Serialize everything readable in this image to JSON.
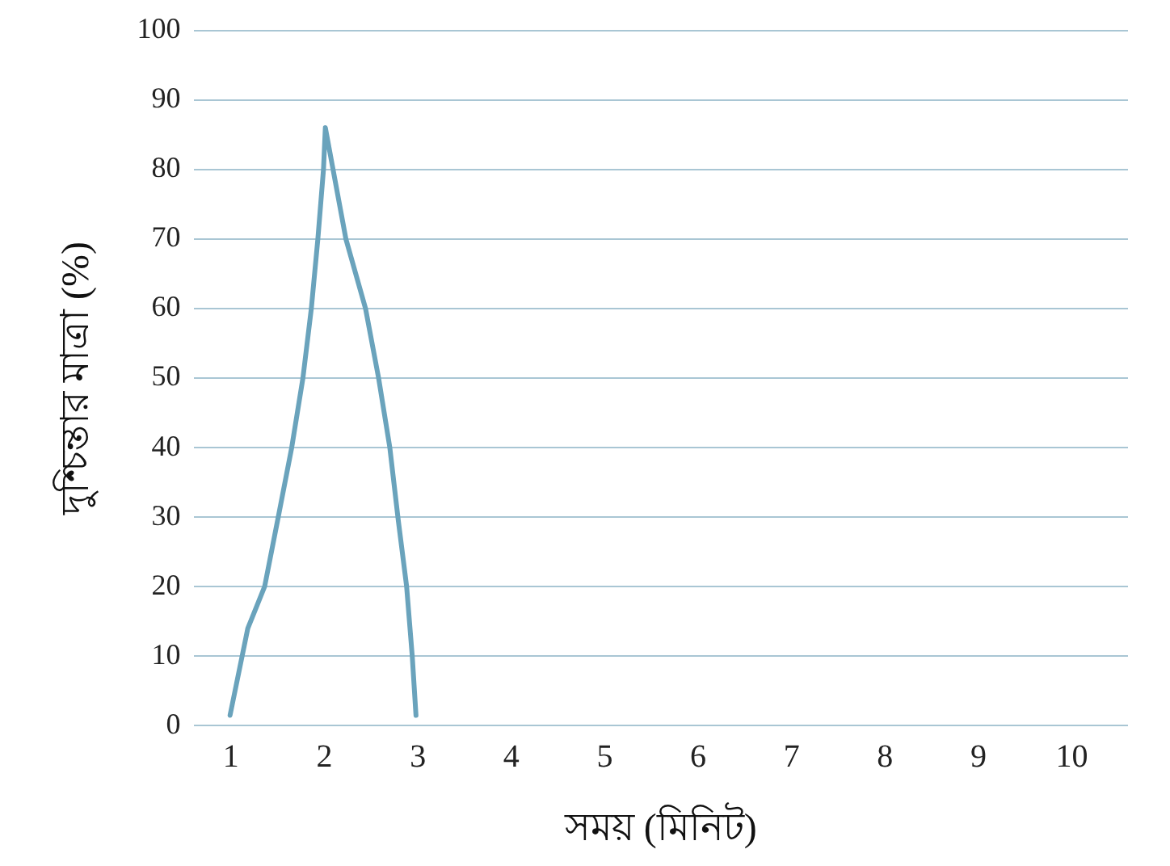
{
  "chart_data": {
    "type": "line",
    "xlabel": "সময় (মিনিট)",
    "ylabel": "দুশ্চিন্তার মাত্রা (%)",
    "x": [
      0.99,
      1.18,
      1.36,
      1.5,
      1.65,
      1.77,
      1.86,
      1.93,
      1.99,
      2.01,
      2.23,
      2.44,
      2.58,
      2.7,
      2.79,
      2.88,
      2.94,
      2.98
    ],
    "series": [
      {
        "color": "#6aa3bc",
        "values": [
          1.5,
          14,
          20,
          29.6,
          40,
          50,
          60,
          70,
          80,
          86,
          70,
          60,
          50,
          40,
          29.6,
          20,
          10,
          1.5
        ]
      }
    ],
    "xlim": [
      0.6,
      10.6
    ],
    "xticks": [
      1,
      2,
      3,
      4,
      5,
      6,
      7,
      8,
      9,
      10
    ],
    "ylim": [
      0,
      100
    ],
    "yticks": [
      0,
      10,
      20,
      30,
      40,
      50,
      60,
      70,
      80,
      90,
      100
    ],
    "grid": "y",
    "legend": false,
    "marker": "none",
    "line_style": "solid"
  }
}
